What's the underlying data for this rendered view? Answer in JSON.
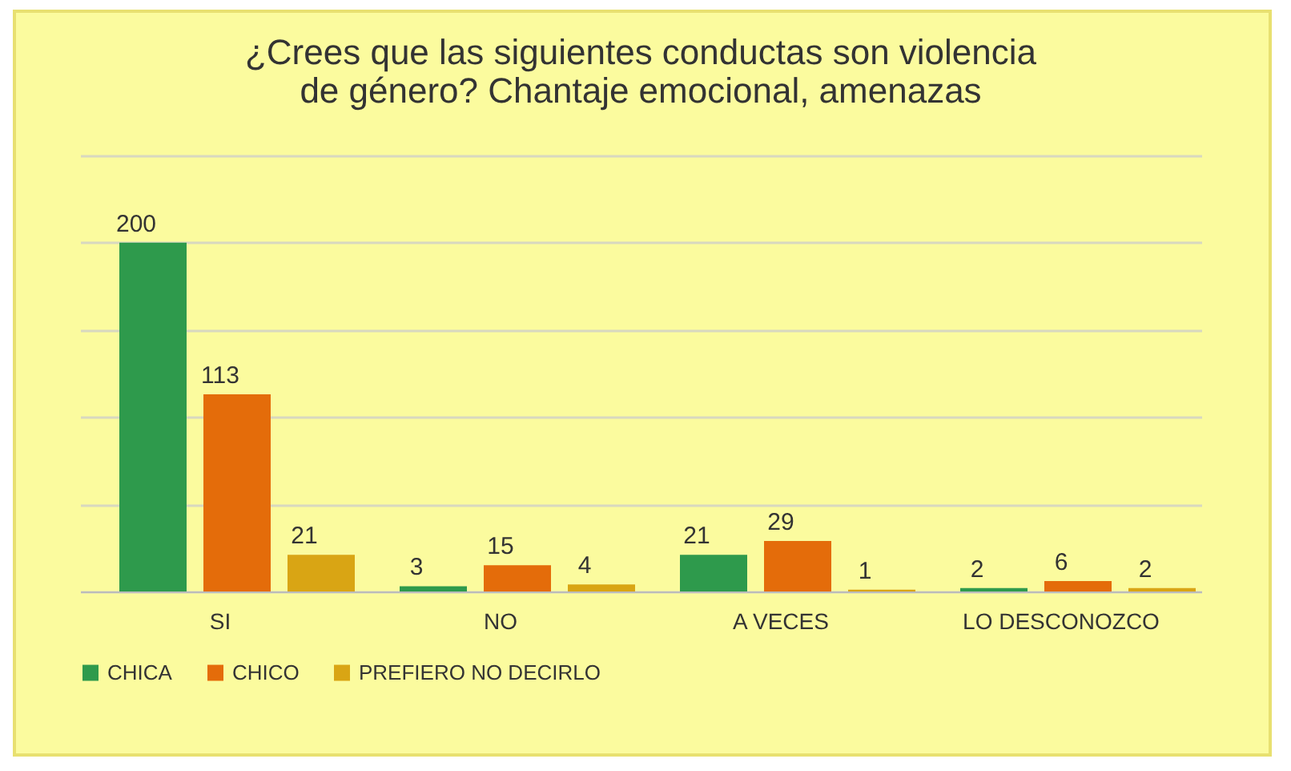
{
  "chart_data": {
    "type": "bar",
    "title": "¿Crees que las siguientes conductas son violencia de género?   Chantaje emocional, amenazas",
    "categories": [
      "SI",
      "NO",
      "A VECES",
      "LO DESCONOZCO"
    ],
    "series": [
      {
        "name": "CHICA",
        "color": "#2e9a4c",
        "values": [
          200,
          3,
          21,
          2
        ]
      },
      {
        "name": "CHICO",
        "color": "#e46c0a",
        "values": [
          113,
          15,
          29,
          6
        ]
      },
      {
        "name": "PREFIERO NO DECIRLO",
        "color": "#d9a514",
        "values": [
          21,
          4,
          1,
          2
        ]
      }
    ],
    "ylim": [
      0,
      250
    ],
    "yticks": [
      {
        "value": 0,
        "label": null
      },
      {
        "value": 50,
        "label": null
      },
      {
        "value": 100,
        "label": null
      },
      {
        "value": 150,
        "label": null
      },
      {
        "value": 200,
        "label": null
      },
      {
        "value": 250,
        "label": null
      }
    ],
    "tick_labels": "x",
    "grid": "y",
    "legend": "bottom",
    "data_labels": true
  }
}
